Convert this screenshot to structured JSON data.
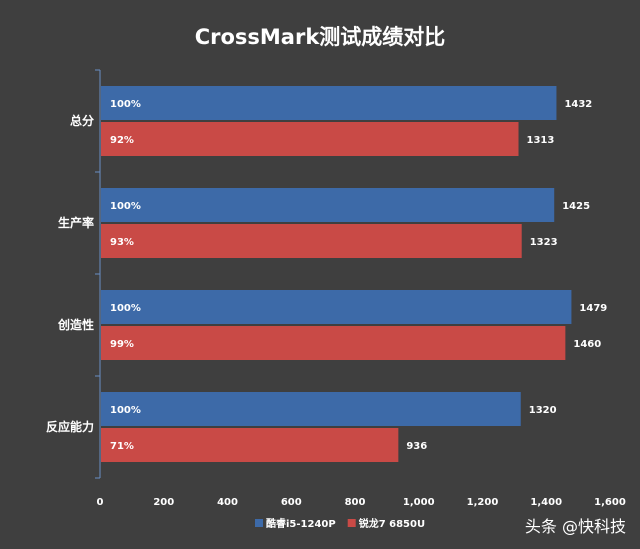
{
  "chart_data": {
    "type": "bar",
    "orientation": "horizontal",
    "title": "CrossMark测试成绩对比",
    "categories": [
      "总分",
      "生产率",
      "创造性",
      "反应能力"
    ],
    "series": [
      {
        "name": "酷睿i5-1240P",
        "color": "#3d6aa8",
        "values": [
          1432,
          1425,
          1479,
          1320
        ],
        "percent_labels": [
          "100%",
          "100%",
          "100%",
          "100%"
        ]
      },
      {
        "name": "锐龙7 6850U",
        "color": "#c94a46",
        "values": [
          1313,
          1323,
          1460,
          936
        ],
        "percent_labels": [
          "92%",
          "93%",
          "99%",
          "71%"
        ]
      }
    ],
    "xlim": [
      0,
      1600
    ],
    "xticks": [
      0,
      200,
      400,
      600,
      800,
      1000,
      1200,
      1400,
      1600
    ],
    "xtick_labels": [
      "0",
      "200",
      "400",
      "600",
      "800",
      "1,000",
      "1,200",
      "1,400",
      "1,600"
    ],
    "grid": false,
    "legend_position": "bottom"
  },
  "watermark": "头条 @快科技"
}
